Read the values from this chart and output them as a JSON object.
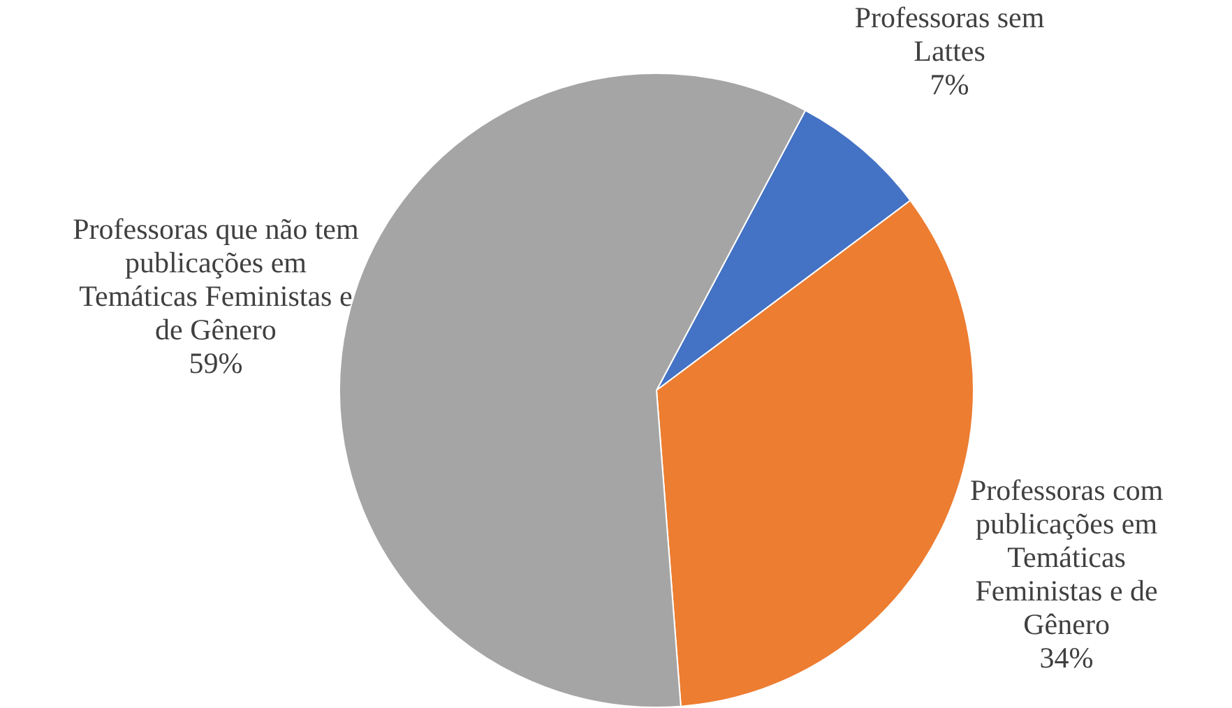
{
  "chart_data": {
    "type": "pie",
    "categories": [
      "Professoras sem Lattes",
      "Professoras com publicações em Temáticas Feministas e de Gênero",
      "Professoras que não tem publicações em Temáticas Feministas e de Gênero"
    ],
    "values": [
      7,
      34,
      59
    ],
    "colors": [
      "#4472c4",
      "#ed7d31",
      "#a5a5a5"
    ],
    "value_labels": [
      "7%",
      "34%",
      "59%"
    ],
    "legend": false
  }
}
